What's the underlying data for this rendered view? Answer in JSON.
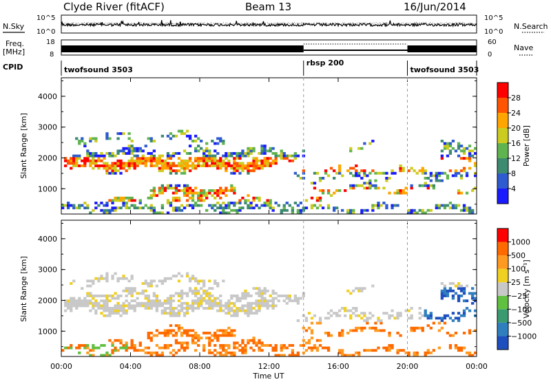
{
  "header": {
    "station": "Clyde River (fitACF)",
    "beam": "Beam 13",
    "date": "16/Jun/2014"
  },
  "noise_panel": {
    "left_label": "N.Sky",
    "left_ticks": [
      "10^5",
      "10^0"
    ],
    "right_ticks": [
      "10^5",
      "10^0"
    ],
    "right_label": "N.Search"
  },
  "freq_panel": {
    "left_label_1": "Freq.",
    "left_label_2": "[MHz]",
    "left_ticks": [
      "18",
      "8"
    ],
    "right_ticks": [
      "60",
      "0"
    ],
    "right_label": "Nave"
  },
  "cpid": {
    "label": "CPID",
    "segments": [
      {
        "name": "twofsound 3503",
        "start_hour": 0,
        "end_hour": 14
      },
      {
        "name": "rbsp 200",
        "start_hour": 14,
        "end_hour": 20
      },
      {
        "name": "twofsound 3503",
        "start_hour": 20,
        "end_hour": 24
      }
    ]
  },
  "chart_data": [
    {
      "type": "heatmap",
      "quantity": "power",
      "ylabel": "Slant Range [km]",
      "ylim": [
        180,
        4600
      ],
      "yticks": [
        "1000",
        "2000",
        "3000",
        "4000"
      ],
      "xlim": [
        0,
        24
      ],
      "colorbar": {
        "label": "Power [dB]",
        "ticks": [
          "4",
          "8",
          "12",
          "16",
          "20",
          "24",
          "28"
        ],
        "colors": [
          "#1a1aff",
          "#2f5bd0",
          "#3c8a70",
          "#60b450",
          "#cccc20",
          "#ffa500",
          "#ff5500",
          "#ff0000"
        ]
      }
    },
    {
      "type": "heatmap",
      "quantity": "velocity",
      "ylabel": "Slant Range [km]",
      "ylim": [
        180,
        4600
      ],
      "yticks": [
        "1000",
        "2000",
        "3000",
        "4000"
      ],
      "xlim": [
        0,
        24
      ],
      "xlabel": "Time UT",
      "xticks": [
        "00:00",
        "04:00",
        "08:00",
        "12:00",
        "16:00",
        "20:00",
        "00:00"
      ],
      "colorbar": {
        "label": "Velocity [m s⁻¹]",
        "ticks": [
          "1000",
          "500",
          "100",
          "25",
          "−25",
          "−100",
          "−500",
          "−1000"
        ],
        "colors": [
          "#1f4fbf",
          "#2f7fbf",
          "#3a9a70",
          "#60c040",
          "#c8c8c8",
          "#f0d020",
          "#ff9a20",
          "#ff6a00",
          "#ff0000"
        ]
      }
    }
  ]
}
